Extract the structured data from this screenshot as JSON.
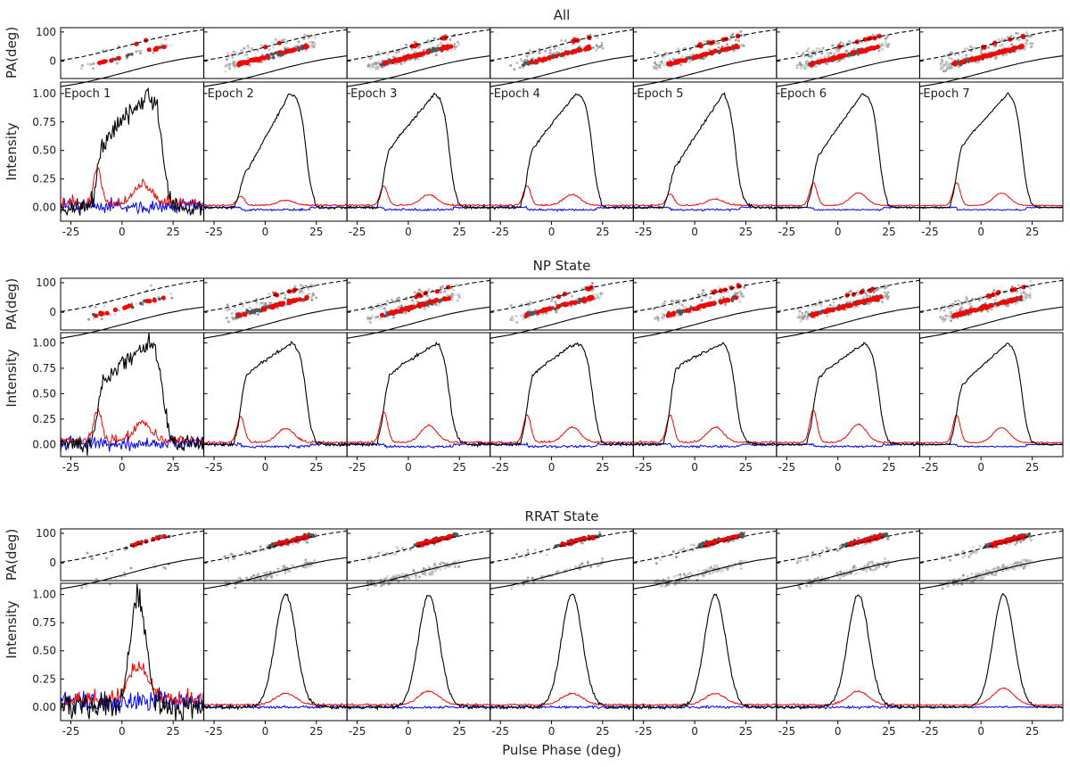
{
  "figure": {
    "xlabel": "Pulse Phase (deg)",
    "pa_ylabel": "PA(deg)",
    "intensity_ylabel": "Intensity"
  },
  "chart_data": {
    "type": "line",
    "x_ticks": [
      -25,
      0,
      25
    ],
    "xlim": [
      -30,
      40
    ],
    "pa_ylim": [
      -60,
      115
    ],
    "pa_yticks": [
      0,
      100
    ],
    "intensity_ylim": [
      -0.12,
      1.1
    ],
    "intensity_yticks": [
      0.0,
      0.25,
      0.5,
      0.75,
      1.0
    ],
    "intensity_ytick_labels": [
      "0.00",
      "0.25",
      "0.50",
      "0.75",
      "1.00"
    ],
    "epochs": [
      "Epoch 1",
      "Epoch 2",
      "Epoch 3",
      "Epoch 4",
      "Epoch 5",
      "Epoch 6",
      "Epoch 7"
    ],
    "colors": {
      "total_intensity": "#000000",
      "linear_polarization": "#ff0000",
      "circular_polarization": "#0000ff",
      "pa_points": "#ff0000",
      "pa_density": "#555555"
    },
    "rvm_curves": [
      {
        "style": "dashed",
        "x": [
          -30,
          -20,
          -10,
          0,
          10,
          20,
          30,
          40
        ],
        "y": [
          2,
          14,
          30,
          48,
          67,
          84,
          98,
          108
        ]
      },
      {
        "style": "solid",
        "x": [
          -30,
          -20,
          -10,
          0,
          10,
          20,
          30,
          40
        ],
        "y": [
          -88,
          -76,
          -60,
          -42,
          -23,
          -6,
          8,
          18
        ]
      }
    ],
    "groups": [
      {
        "title": "All",
        "profile_kind": "np",
        "orthogonal_mode": "lower",
        "pa_density_level": [
          0.15,
          0.7,
          0.85,
          0.55,
          0.75,
          0.9,
          1.0
        ],
        "profiles": [
          {
            "epoch": "Epoch 1",
            "I": {
              "peak_deg": 13,
              "lead_comp": 0.6,
              "width_deg": 28
            },
            "L_peak": 0.3,
            "V_level": 0.02,
            "noise": 0.1
          },
          {
            "epoch": "Epoch 2",
            "I": {
              "peak_deg": 12,
              "lead_comp": 0.35,
              "width_deg": 30
            },
            "L_peak": 0.08,
            "V_level": 0.0,
            "noise": 0.015
          },
          {
            "epoch": "Epoch 3",
            "I": {
              "peak_deg": 13,
              "lead_comp": 0.55,
              "width_deg": 30
            },
            "L_peak": 0.17,
            "V_level": 0.0,
            "noise": 0.015
          },
          {
            "epoch": "Epoch 4",
            "I": {
              "peak_deg": 12,
              "lead_comp": 0.55,
              "width_deg": 30
            },
            "L_peak": 0.17,
            "V_level": 0.0,
            "noise": 0.015
          },
          {
            "epoch": "Epoch 5",
            "I": {
              "peak_deg": 14,
              "lead_comp": 0.4,
              "width_deg": 30
            },
            "L_peak": 0.1,
            "V_level": 0.0,
            "noise": 0.015
          },
          {
            "epoch": "Epoch 6",
            "I": {
              "peak_deg": 12,
              "lead_comp": 0.5,
              "width_deg": 30
            },
            "L_peak": 0.2,
            "V_level": 0.0,
            "noise": 0.01
          },
          {
            "epoch": "Epoch 7",
            "I": {
              "peak_deg": 13,
              "lead_comp": 0.58,
              "width_deg": 30
            },
            "L_peak": 0.2,
            "V_level": 0.0,
            "noise": 0.008
          }
        ]
      },
      {
        "title": "NP State",
        "profile_kind": "np",
        "orthogonal_mode": "lower",
        "pa_density_level": [
          0.15,
          0.6,
          0.8,
          0.5,
          0.7,
          0.85,
          1.0
        ],
        "profiles": [
          {
            "epoch": "Epoch 1",
            "I": {
              "peak_deg": 13,
              "lead_comp": 0.65,
              "width_deg": 28
            },
            "L_peak": 0.3,
            "V_level": 0.02,
            "noise": 0.1
          },
          {
            "epoch": "Epoch 2",
            "I": {
              "peak_deg": 13,
              "lead_comp": 0.72,
              "width_deg": 30
            },
            "L_peak": 0.25,
            "V_level": 0.0,
            "noise": 0.02
          },
          {
            "epoch": "Epoch 3",
            "I": {
              "peak_deg": 14,
              "lead_comp": 0.72,
              "width_deg": 30
            },
            "L_peak": 0.3,
            "V_level": 0.0,
            "noise": 0.02
          },
          {
            "epoch": "Epoch 4",
            "I": {
              "peak_deg": 12,
              "lead_comp": 0.72,
              "width_deg": 30
            },
            "L_peak": 0.27,
            "V_level": 0.0,
            "noise": 0.02
          },
          {
            "epoch": "Epoch 5",
            "I": {
              "peak_deg": 14,
              "lead_comp": 0.78,
              "width_deg": 30
            },
            "L_peak": 0.27,
            "V_level": 0.0,
            "noise": 0.02
          },
          {
            "epoch": "Epoch 6",
            "I": {
              "peak_deg": 13,
              "lead_comp": 0.7,
              "width_deg": 30
            },
            "L_peak": 0.32,
            "V_level": 0.0,
            "noise": 0.015
          },
          {
            "epoch": "Epoch 7",
            "I": {
              "peak_deg": 13,
              "lead_comp": 0.62,
              "width_deg": 30
            },
            "L_peak": 0.27,
            "V_level": 0.0,
            "noise": 0.01
          }
        ]
      },
      {
        "title": "RRAT State",
        "profile_kind": "rrat",
        "orthogonal_mode": "upper",
        "pa_density_level": [
          0.1,
          0.6,
          0.7,
          0.3,
          0.7,
          0.7,
          1.0
        ],
        "profiles": [
          {
            "epoch": "Epoch 1",
            "I": {
              "peak_deg": 8,
              "lead_comp": 0.0,
              "width_deg": 12
            },
            "L_peak": 0.3,
            "V_level": 0.05,
            "noise": 0.15
          },
          {
            "epoch": "Epoch 2",
            "I": {
              "peak_deg": 10,
              "lead_comp": 0.0,
              "width_deg": 16
            },
            "L_peak": 0.1,
            "V_level": 0.0,
            "noise": 0.02
          },
          {
            "epoch": "Epoch 3",
            "I": {
              "peak_deg": 10,
              "lead_comp": 0.0,
              "width_deg": 16
            },
            "L_peak": 0.12,
            "V_level": 0.0,
            "noise": 0.02
          },
          {
            "epoch": "Epoch 4",
            "I": {
              "peak_deg": 10,
              "lead_comp": 0.0,
              "width_deg": 16
            },
            "L_peak": 0.1,
            "V_level": 0.0,
            "noise": 0.02
          },
          {
            "epoch": "Epoch 5",
            "I": {
              "peak_deg": 10,
              "lead_comp": 0.0,
              "width_deg": 16
            },
            "L_peak": 0.1,
            "V_level": 0.0,
            "noise": 0.02
          },
          {
            "epoch": "Epoch 6",
            "I": {
              "peak_deg": 10,
              "lead_comp": 0.0,
              "width_deg": 16
            },
            "L_peak": 0.12,
            "V_level": 0.0,
            "noise": 0.02
          },
          {
            "epoch": "Epoch 7",
            "I": {
              "peak_deg": 11,
              "lead_comp": 0.0,
              "width_deg": 16
            },
            "L_peak": 0.15,
            "V_level": 0.0,
            "noise": 0.012
          }
        ]
      }
    ]
  }
}
